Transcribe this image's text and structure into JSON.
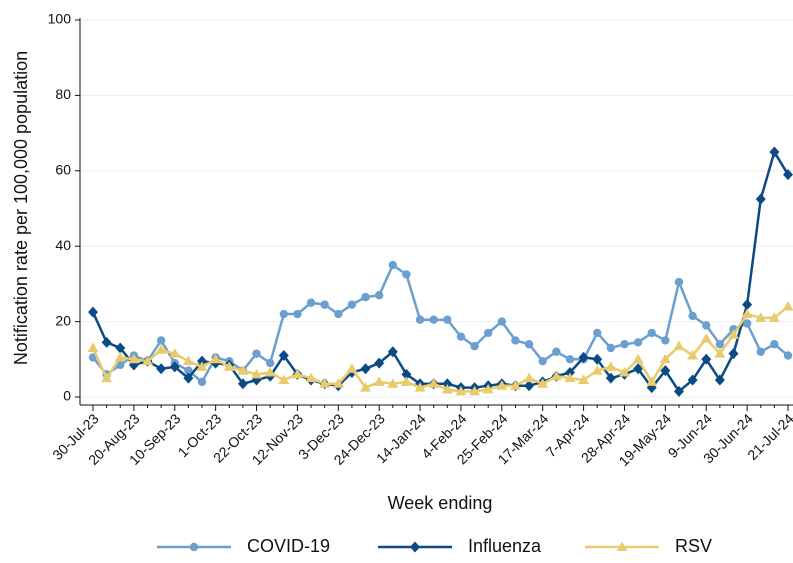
{
  "chart_data": {
    "type": "line",
    "x_label": "Week ending",
    "y_label": "Notification rate per 100,000 population",
    "categories": [
      "30-Jul-23",
      null,
      null,
      "20-Aug-23",
      null,
      null,
      "10-Sep-23",
      null,
      null,
      "1-Oct-23",
      null,
      null,
      "22-Oct-23",
      null,
      null,
      "12-Nov-23",
      null,
      null,
      "3-Dec-23",
      null,
      null,
      "24-Dec-23",
      null,
      null,
      "14-Jan-24",
      null,
      null,
      "4-Feb-24",
      null,
      null,
      "25-Feb-24",
      null,
      null,
      "17-Mar-24",
      null,
      null,
      "7-Apr-24",
      null,
      null,
      "28-Apr-24",
      null,
      null,
      "19-May-24",
      null,
      null,
      "9-Jun-24",
      null,
      null,
      "30-Jun-24",
      null,
      null,
      "21-Jul-24"
    ],
    "series": [
      {
        "name": "COVID-19",
        "color": "#6b9fd0",
        "marker": "circle",
        "values": [
          10.5,
          6,
          8.5,
          11,
          9.5,
          15,
          9,
          7,
          4,
          10.5,
          9.5,
          7,
          11.5,
          9,
          22,
          22,
          25,
          24.5,
          22,
          24.5,
          26.5,
          27,
          35,
          32.5,
          20.5,
          20.5,
          20.5,
          16,
          13.5,
          17,
          20,
          15,
          14,
          9.5,
          12,
          10,
          10,
          17,
          13,
          14,
          14.5,
          17,
          15,
          30.5,
          21.5,
          19,
          14,
          18,
          19.5,
          12,
          14,
          11
        ]
      },
      {
        "name": "Influenza",
        "color": "#0b4a85",
        "marker": "diamond",
        "values": [
          22.5,
          14.5,
          13,
          8.5,
          9.5,
          7.5,
          8,
          5,
          9.5,
          9,
          8.5,
          3.5,
          4.5,
          5.5,
          11,
          6,
          4.5,
          3.5,
          3,
          6.5,
          7.5,
          9,
          12,
          6,
          3.5,
          3.5,
          3.5,
          2.5,
          2.5,
          3,
          3.5,
          3,
          3,
          4,
          5.5,
          6.5,
          10.5,
          10,
          5,
          6,
          7.5,
          2.5,
          7,
          1.5,
          4.5,
          10,
          4.5,
          11.5,
          24.5,
          52.5,
          65,
          59
        ]
      },
      {
        "name": "RSV",
        "color": "#e9cb6c",
        "marker": "triangle",
        "values": [
          13,
          5,
          10.5,
          10,
          9.5,
          12.5,
          11.5,
          9.5,
          8,
          10,
          8,
          7,
          6,
          6.5,
          4.5,
          6,
          5,
          3.5,
          3.5,
          7.5,
          2.5,
          4,
          3.5,
          4,
          2.5,
          3.5,
          2,
          1.5,
          1.5,
          2,
          3,
          3,
          5,
          3.5,
          5.5,
          5,
          4.5,
          7,
          8,
          6.5,
          10,
          4,
          10,
          13.5,
          11,
          15.5,
          11.5,
          16.5,
          22,
          21,
          21,
          24
        ]
      }
    ],
    "ylim": [
      0,
      100
    ],
    "yticks": [
      0,
      20,
      40,
      60,
      80,
      100
    ],
    "grid": true,
    "legend": "bottom"
  }
}
